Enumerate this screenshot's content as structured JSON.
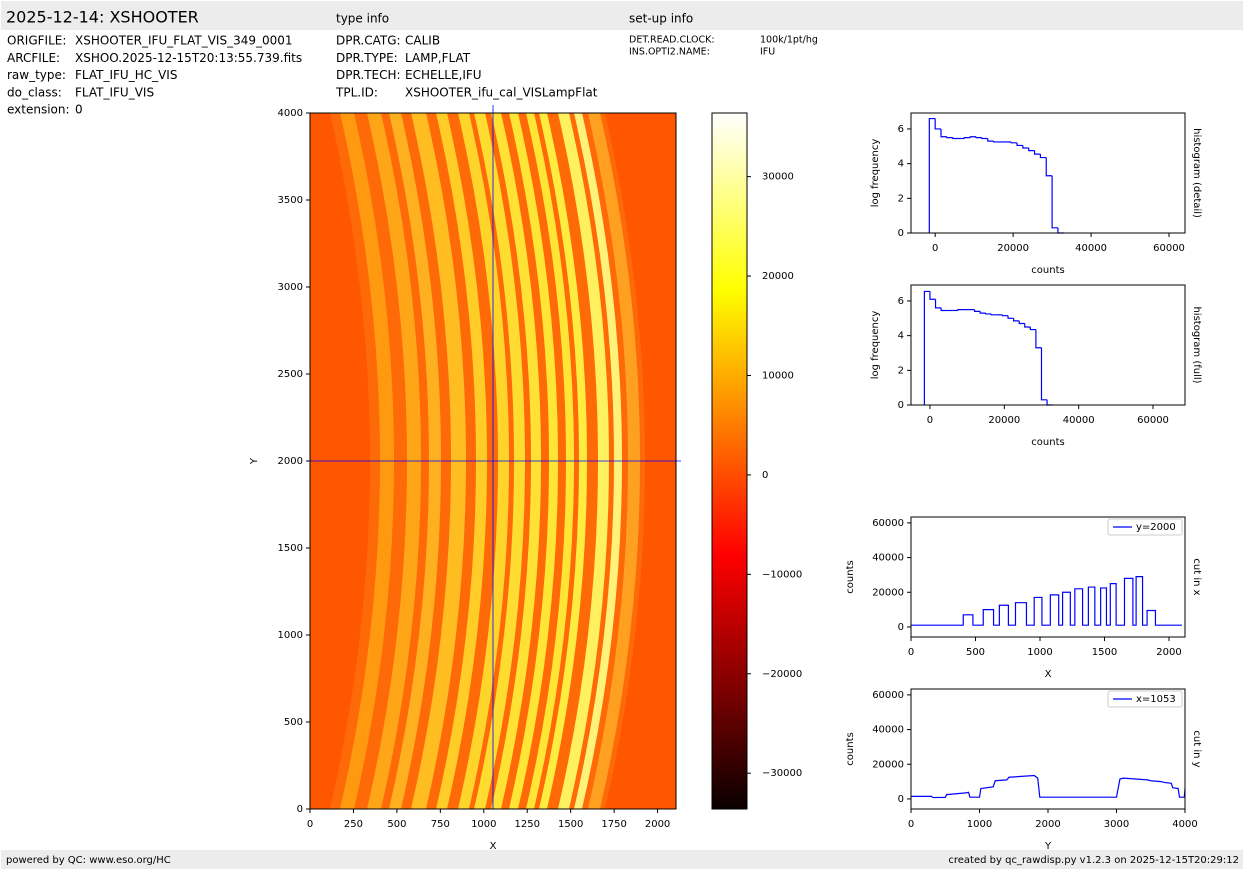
{
  "header": {
    "title": "2025-12-14: XSHOOTER",
    "type_info": "type info",
    "setup_info": "set-up info"
  },
  "file_info": [
    [
      "ORIGFILE:",
      "XSHOOTER_IFU_FLAT_VIS_349_0001"
    ],
    [
      "ARCFILE:",
      "XSHOO.2025-12-15T20:13:55.739.fits"
    ],
    [
      "raw_type:",
      "FLAT_IFU_HC_VIS"
    ],
    [
      "do_class:",
      "FLAT_IFU_VIS"
    ],
    [
      "extension:",
      "0"
    ]
  ],
  "type_info": [
    [
      "DPR.CATG:",
      "CALIB"
    ],
    [
      "DPR.TYPE:",
      "LAMP,FLAT"
    ],
    [
      "DPR.TECH:",
      "ECHELLE,IFU"
    ],
    [
      "TPL.ID:",
      "XSHOOTER_ifu_cal_VISLampFlat"
    ]
  ],
  "setup_info": [
    [
      "DET.READ.CLOCK:",
      "100k/1pt/hg"
    ],
    [
      "INS.OPTI2.NAME:",
      "IFU"
    ]
  ],
  "footer": {
    "left": "powered by QC: www.eso.org/HC",
    "right": "created by qc_rawdisp.py v1.2.3 on 2025-12-15T20:29:12"
  },
  "chart_data": [
    {
      "type": "image",
      "xlabel": "X",
      "ylabel": "Y",
      "xlim": [
        0,
        2106
      ],
      "ylim": [
        0,
        4000
      ],
      "xticks": [
        0,
        250,
        500,
        750,
        1000,
        1250,
        1500,
        1750,
        2000
      ],
      "yticks": [
        0,
        500,
        1000,
        1500,
        2000,
        2500,
        3000,
        3500,
        4000
      ],
      "crosshair": {
        "x": 1053,
        "y": 2000,
        "color": "#0000ff"
      },
      "colorbar": {
        "colormap": "hot",
        "lim": [
          -33600,
          36400
        ],
        "ticks": [
          {
            "value": -30000,
            "label": "−30000"
          },
          {
            "value": -20000,
            "label": "−20000"
          },
          {
            "value": -10000,
            "label": "−10000"
          },
          0,
          10000,
          20000,
          30000
        ]
      }
    },
    {
      "type": "histogram",
      "xlabel": "counts",
      "ylabel": "log frequency",
      "side_label": "histogram (detail)",
      "color": "#0000ff",
      "bins": [
        -1500,
        0,
        1500,
        3000,
        4500,
        6000,
        7500,
        9000,
        10500,
        12000,
        13500,
        15000,
        16500,
        18000,
        19500,
        21000,
        22500,
        24000,
        25500,
        27000,
        28500,
        30000,
        31500,
        33000
      ],
      "values": [
        6.6,
        6.0,
        5.55,
        5.5,
        5.45,
        5.45,
        5.5,
        5.55,
        5.5,
        5.45,
        5.3,
        5.25,
        5.25,
        5.25,
        5.2,
        5.05,
        4.9,
        4.75,
        4.55,
        4.35,
        3.3,
        0.3,
        0
      ],
      "xlim": [
        -6200,
        64100
      ],
      "ylim": [
        0,
        6.92
      ],
      "xticks": [
        0,
        20000,
        40000,
        60000
      ],
      "yticks": [
        0,
        2,
        4,
        6
      ]
    },
    {
      "type": "histogram",
      "xlabel": "counts",
      "ylabel": "log frequency",
      "side_label": "histogram (full)",
      "color": "#0000ff",
      "bins": [
        -1500,
        0,
        1500,
        3000,
        4500,
        6000,
        7500,
        9000,
        10500,
        12000,
        13500,
        15000,
        16500,
        18000,
        19500,
        21000,
        22500,
        24000,
        25500,
        27000,
        28500,
        30000,
        31500,
        33000
      ],
      "values": [
        6.55,
        6.1,
        5.6,
        5.45,
        5.45,
        5.45,
        5.5,
        5.5,
        5.5,
        5.4,
        5.3,
        5.25,
        5.2,
        5.2,
        5.15,
        5.0,
        4.85,
        4.7,
        4.5,
        4.35,
        3.3,
        0.3,
        0
      ],
      "xlim": [
        -5100,
        68600
      ],
      "ylim": [
        0,
        6.92
      ],
      "xticks": [
        0,
        20000,
        40000,
        60000
      ],
      "yticks": [
        0,
        2,
        4,
        6
      ]
    },
    {
      "type": "line",
      "xlabel": "X",
      "ylabel": "counts",
      "side_label": "cut in x",
      "legend": "upper right",
      "xlim": [
        0,
        2124
      ],
      "ylim": [
        -5800,
        63400
      ],
      "xticks": [
        0,
        500,
        1000,
        1500,
        2000
      ],
      "yticks": [
        0,
        20000,
        40000,
        60000
      ],
      "x": [
        0,
        405,
        405,
        480,
        480,
        560,
        560,
        640,
        640,
        685,
        685,
        755,
        755,
        810,
        810,
        895,
        895,
        955,
        955,
        1015,
        1015,
        1080,
        1080,
        1145,
        1145,
        1175,
        1175,
        1235,
        1235,
        1270,
        1270,
        1330,
        1330,
        1375,
        1375,
        1425,
        1425,
        1470,
        1470,
        1515,
        1515,
        1545,
        1545,
        1590,
        1590,
        1655,
        1655,
        1720,
        1720,
        1745,
        1745,
        1795,
        1795,
        1830,
        1830,
        1895,
        1895,
        2100
      ],
      "series": [
        {
          "name": "y=2000",
          "color": "#0000ff",
          "values": [
            1000,
            1000,
            7000,
            7000,
            1000,
            1000,
            10000,
            10000,
            1000,
            1000,
            12500,
            12500,
            1000,
            1000,
            14000,
            14000,
            1000,
            1000,
            17000,
            17000,
            1000,
            1000,
            18500,
            18500,
            1000,
            1000,
            20000,
            20000,
            1000,
            1000,
            22000,
            22000,
            1000,
            1000,
            23000,
            23000,
            1000,
            1000,
            22500,
            22500,
            1000,
            1000,
            25000,
            25000,
            1000,
            1000,
            28000,
            28000,
            1000,
            1000,
            29000,
            29000,
            1000,
            1000,
            9500,
            9500,
            1000,
            1000
          ]
        }
      ]
    },
    {
      "type": "line",
      "xlabel": "Y",
      "ylabel": "counts",
      "side_label": "cut in y",
      "legend": "upper right",
      "xlim": [
        0,
        4000
      ],
      "ylim": [
        -5800,
        63400
      ],
      "xticks": [
        0,
        1000,
        2000,
        3000,
        4000
      ],
      "yticks": [
        0,
        20000,
        40000,
        60000
      ],
      "x": [
        0,
        300,
        320,
        500,
        520,
        800,
        840,
        860,
        1000,
        1020,
        1200,
        1230,
        1400,
        1430,
        1800,
        1850,
        1880,
        3000,
        3050,
        3100,
        3450,
        3500,
        3650,
        3700,
        3800,
        3820,
        3900,
        3920,
        3990,
        4000
      ],
      "series": [
        {
          "name": "x=1053",
          "color": "#0000ff",
          "values": [
            1500,
            1500,
            800,
            900,
            2500,
            3500,
            3800,
            1000,
            1000,
            6000,
            7000,
            10500,
            11000,
            12500,
            13500,
            12000,
            1000,
            1000,
            11500,
            12000,
            11000,
            10500,
            10000,
            9500,
            9000,
            6500,
            6000,
            1000,
            1000,
            6000
          ]
        }
      ]
    }
  ]
}
